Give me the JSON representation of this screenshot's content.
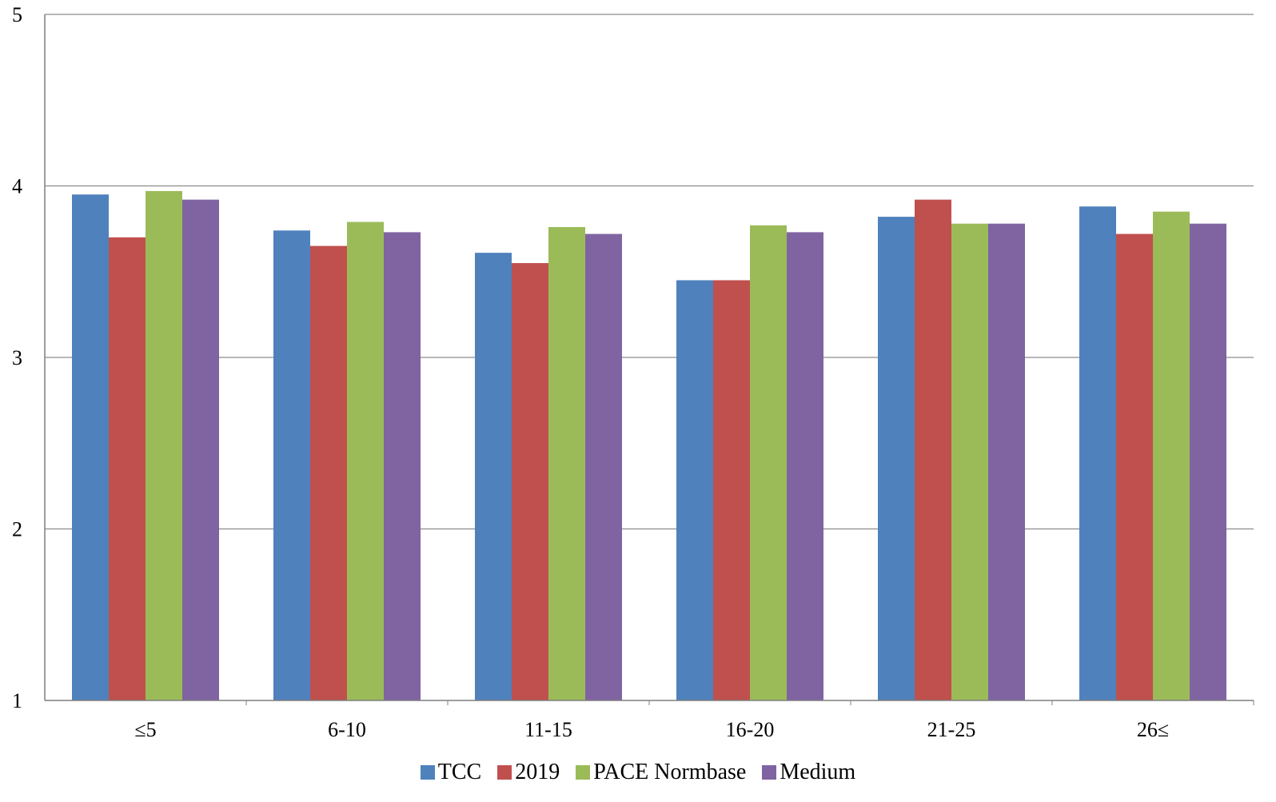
{
  "chart_data": {
    "type": "bar",
    "title": "",
    "xlabel": "",
    "ylabel": "",
    "ylim": [
      1,
      5
    ],
    "yticks": [
      "1",
      "2",
      "3",
      "4",
      "5"
    ],
    "grid": true,
    "legend_position": "bottom",
    "categories": [
      "≤5",
      "6-10",
      "11-15",
      "16-20",
      "21-25",
      "26≤"
    ],
    "series": [
      {
        "name": "TCC",
        "color": "#4F81BD",
        "values": [
          3.95,
          3.74,
          3.61,
          3.45,
          3.82,
          3.88
        ]
      },
      {
        "name": "2019",
        "color": "#C0504D",
        "values": [
          3.7,
          3.65,
          3.55,
          3.45,
          3.92,
          3.72
        ]
      },
      {
        "name": "PACE Normbase",
        "color": "#9BBB59",
        "values": [
          3.97,
          3.79,
          3.76,
          3.77,
          3.78,
          3.85
        ]
      },
      {
        "name": "Medium",
        "color": "#8064A2",
        "values": [
          3.92,
          3.73,
          3.72,
          3.73,
          3.78,
          3.78
        ]
      }
    ]
  }
}
